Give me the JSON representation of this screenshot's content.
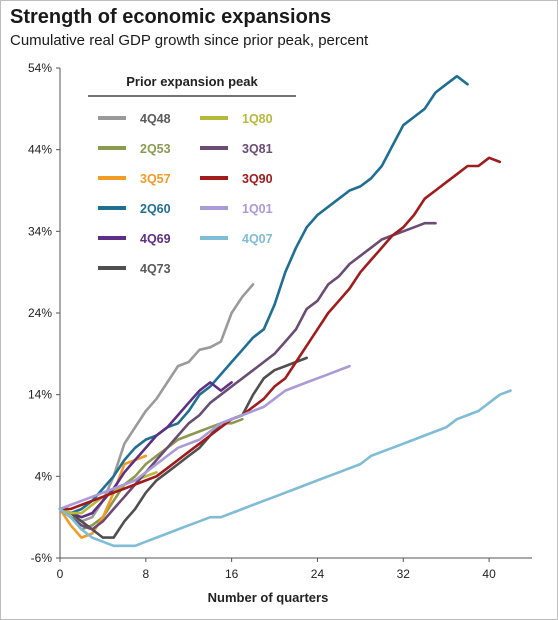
{
  "chart_data": {
    "type": "line",
    "title": "Strength of economic expansions",
    "subtitle": "Cumulative real GDP growth since prior peak, percent",
    "xlabel": "Number of quarters",
    "ylabel": "",
    "xlim": [
      0,
      44
    ],
    "ylim": [
      -6,
      54
    ],
    "x_ticks": [
      0,
      8,
      16,
      24,
      32,
      40
    ],
    "y_ticks": [
      -6,
      4,
      14,
      24,
      34,
      44,
      54
    ],
    "x_tick_labels": [
      "0",
      "8",
      "16",
      "24",
      "32",
      "40"
    ],
    "y_tick_labels": [
      "-6%",
      "4%",
      "14%",
      "24%",
      "34%",
      "44%",
      "54%"
    ],
    "legend_title": "Prior expansion peak",
    "legend_position": "top-left",
    "grid": false,
    "series": [
      {
        "name": "4Q48",
        "color": "#9a9a9a",
        "values": [
          0,
          -1,
          -1.5,
          -1,
          1,
          4,
          8,
          10,
          12,
          13.5,
          15.5,
          17.5,
          18,
          19.5,
          19.8,
          20.5,
          24,
          26,
          27.5
        ]
      },
      {
        "name": "2Q53",
        "color": "#8c9a4f",
        "values": [
          0,
          -1,
          -2.5,
          -2,
          -1,
          1,
          3,
          4,
          5.5,
          6.5,
          7.5,
          8.5,
          9,
          9.5,
          10,
          10.5,
          10.5,
          11
        ]
      },
      {
        "name": "3Q57",
        "color": "#f29b26",
        "values": [
          0,
          -2,
          -3.5,
          -3,
          -1,
          2,
          5.5,
          6,
          6.5
        ]
      },
      {
        "name": "2Q60",
        "color": "#1f6f94",
        "values": [
          0,
          -0.5,
          0,
          1,
          2.5,
          4,
          6,
          7.5,
          8.5,
          9,
          10,
          10.5,
          12,
          14,
          15,
          16.5,
          18,
          19.5,
          21,
          22,
          25,
          29,
          32,
          34.5,
          36,
          37,
          38,
          39,
          39.5,
          40.5,
          42,
          44.5,
          47,
          48,
          49,
          51,
          52,
          53,
          52
        ]
      },
      {
        "name": "4Q69",
        "color": "#5e2f82",
        "values": [
          0,
          -0.5,
          -1,
          -0.5,
          1,
          2.5,
          4.5,
          6,
          7.5,
          9,
          10,
          11.5,
          13,
          14.5,
          15.5,
          14.5,
          15.5
        ]
      },
      {
        "name": "4Q73",
        "color": "#4f4f4f",
        "values": [
          0,
          -0.5,
          -1.5,
          -2.5,
          -3.5,
          -3.5,
          -1.5,
          0,
          2,
          3.5,
          4.5,
          5.5,
          6.5,
          7.5,
          9,
          10.5,
          11,
          11.5,
          14,
          16,
          17,
          17.5,
          18,
          18.5
        ]
      },
      {
        "name": "1Q80",
        "color": "#b7b93b",
        "values": [
          0,
          -0.5,
          -0.5,
          0.5,
          1.5,
          2,
          3,
          3.5,
          4,
          4.5
        ]
      },
      {
        "name": "3Q81",
        "color": "#6b4c72",
        "values": [
          0,
          -1,
          -2,
          -2.5,
          -1.5,
          0,
          1.5,
          3,
          4.5,
          6,
          7.5,
          9,
          10.5,
          11.5,
          13,
          14,
          15,
          16,
          17,
          18,
          19,
          20.5,
          22,
          24.5,
          25.5,
          27.5,
          28.5,
          30,
          31,
          32,
          33,
          33.5,
          34,
          34.5,
          35,
          35
        ]
      },
      {
        "name": "3Q90",
        "color": "#a01c1c",
        "values": [
          0,
          0,
          0.5,
          1,
          1.5,
          2,
          2.5,
          3,
          3.5,
          4,
          5,
          6,
          7,
          8,
          9,
          10,
          11,
          11.5,
          12.5,
          13.5,
          15,
          16,
          18,
          20,
          22,
          24,
          25.5,
          27,
          29,
          30.5,
          32,
          33.5,
          34.5,
          36,
          38,
          39,
          40,
          41,
          42,
          42,
          43,
          42.5
        ]
      },
      {
        "name": "1Q01",
        "color": "#a99ad8",
        "values": [
          0,
          0.5,
          1,
          1.5,
          2,
          2.5,
          3,
          3.5,
          4.5,
          5.5,
          6.5,
          7.5,
          8,
          8.5,
          9.5,
          10.5,
          11,
          11.5,
          12,
          12.5,
          13.5,
          14.5,
          15,
          15.5,
          16,
          16.5,
          17,
          17.5
        ]
      },
      {
        "name": "4Q07",
        "color": "#7fbcd6",
        "values": [
          0,
          -1,
          -2.5,
          -3.5,
          -4,
          -4.5,
          -4.5,
          -4.5,
          -4,
          -3.5,
          -3,
          -2.5,
          -2,
          -1.5,
          -1,
          -1,
          -0.5,
          0,
          0.5,
          1,
          1.5,
          2,
          2.5,
          3,
          3.5,
          4,
          4.5,
          5,
          5.5,
          6.5,
          7,
          7.5,
          8,
          8.5,
          9,
          9.5,
          10,
          11,
          11.5,
          12,
          13,
          14,
          14.5
        ]
      }
    ]
  }
}
